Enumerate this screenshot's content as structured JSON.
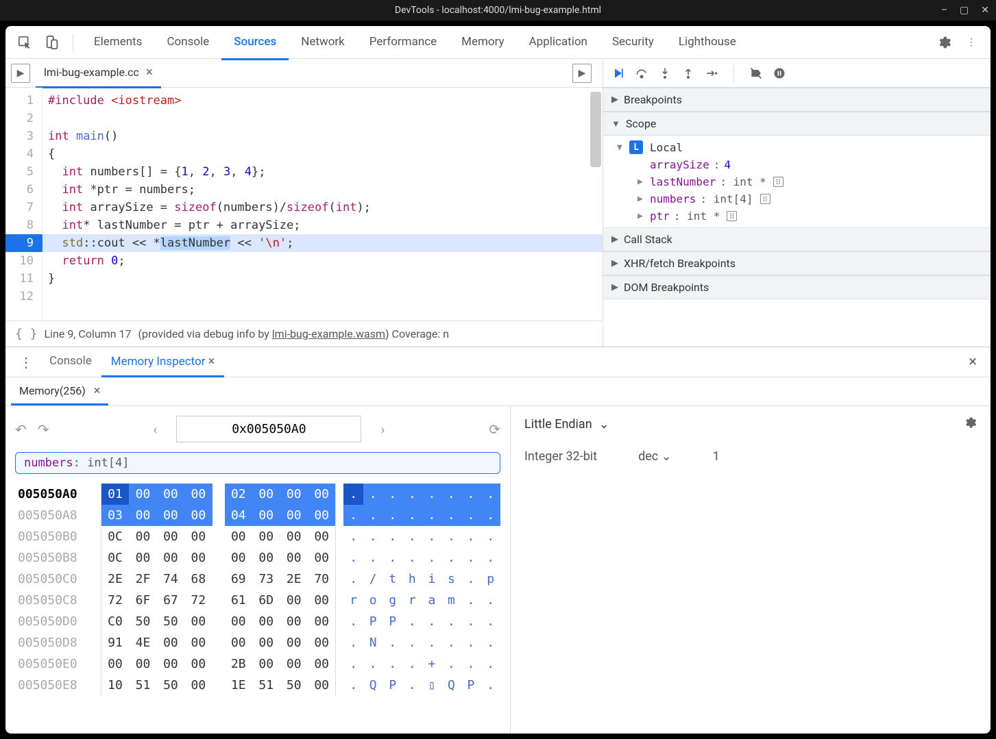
{
  "window": {
    "title": "DevTools - localhost:4000/lmi-bug-example.html"
  },
  "main_tabs": [
    "Elements",
    "Console",
    "Sources",
    "Network",
    "Performance",
    "Memory",
    "Application",
    "Security",
    "Lighthouse"
  ],
  "main_tabs_active": 2,
  "file_tab": "lmi-bug-example.cc",
  "code": {
    "lines": [
      {
        "n": 1,
        "html": "<span class='kw'>#include</span> <span class='str'>&lt;iostream&gt;</span>"
      },
      {
        "n": 2,
        "html": ""
      },
      {
        "n": 3,
        "html": "<span class='kw'>int</span> <span class='fn'>main</span>()"
      },
      {
        "n": 4,
        "html": "{"
      },
      {
        "n": 5,
        "html": "  <span class='kw'>int</span> numbers[] = {<span class='num'>1</span>, <span class='num'>2</span>, <span class='num'>3</span>, <span class='num'>4</span>};"
      },
      {
        "n": 6,
        "html": "  <span class='kw'>int</span> *ptr = numbers;"
      },
      {
        "n": 7,
        "html": "  <span class='kw'>int</span> arraySize = <span class='kw'>sizeof</span>(numbers)/<span class='kw'>sizeof</span>(<span class='kw'>int</span>);"
      },
      {
        "n": 8,
        "html": "  <span class='kw'>int</span>* lastNumber = ptr + arraySize;"
      },
      {
        "n": 9,
        "html": "  <span class='ns'>std</span>::cout &lt;&lt; *<span class='sel'>lastNumber</span> &lt;&lt; <span class='str'>'\\n'</span>;",
        "hl": true
      },
      {
        "n": 10,
        "html": "  <span class='kw'>return</span> <span class='num'>0</span>;"
      },
      {
        "n": 11,
        "html": "}"
      },
      {
        "n": 12,
        "html": ""
      }
    ]
  },
  "status": {
    "pos": "Line 9, Column 17",
    "provided": "(provided via debug info by ",
    "link": "lmi-bug-example.wasm",
    "after": ")  Coverage: n"
  },
  "panels": {
    "breakpoints": "Breakpoints",
    "scope": "Scope",
    "local": "Local",
    "callstack": "Call Stack",
    "xhr": "XHR/fetch Breakpoints",
    "dom": "DOM Breakpoints"
  },
  "scope": [
    {
      "name": "arraySize",
      "type": "",
      "val": "4",
      "num": true,
      "expand": false
    },
    {
      "name": "lastNumber",
      "type": ": int *",
      "val": "",
      "mem": true,
      "expand": true
    },
    {
      "name": "numbers",
      "type": ": int[4]",
      "val": "",
      "mem": true,
      "expand": true
    },
    {
      "name": "ptr",
      "type": ": int *",
      "val": "",
      "mem": true,
      "expand": true
    }
  ],
  "drawer_tabs": [
    "Console",
    "Memory Inspector"
  ],
  "drawer_active": 1,
  "mem_tab": "Memory(256)",
  "mem_addr": "0x005050A0",
  "mem_chip_name": "numbers",
  "mem_chip_type": ": int[4]",
  "endian": "Little Endian",
  "int_type": "Integer 32-bit",
  "int_fmt": "dec",
  "int_val": "1",
  "hex": {
    "rows": [
      {
        "addr": "005050A0",
        "cur": true,
        "b": [
          "01",
          "00",
          "00",
          "00",
          "02",
          "00",
          "00",
          "00"
        ],
        "a": [
          ".",
          ".",
          ".",
          ".",
          ".",
          ".",
          ".",
          "."
        ],
        "hi": [
          0,
          1,
          2,
          3,
          4,
          5,
          6,
          7
        ],
        "ahi": [
          0,
          1,
          2,
          3,
          4,
          5,
          6,
          7
        ],
        "dark": 0,
        "adark": 0
      },
      {
        "addr": "005050A8",
        "b": [
          "03",
          "00",
          "00",
          "00",
          "04",
          "00",
          "00",
          "00"
        ],
        "a": [
          ".",
          ".",
          ".",
          ".",
          ".",
          ".",
          ".",
          "."
        ],
        "hi": [
          0,
          1,
          2,
          3,
          4,
          5,
          6,
          7
        ],
        "ahi": [
          0,
          1,
          2,
          3,
          4,
          5,
          6,
          7
        ]
      },
      {
        "addr": "005050B0",
        "b": [
          "0C",
          "00",
          "00",
          "00",
          "00",
          "00",
          "00",
          "00"
        ],
        "a": [
          ".",
          ".",
          ".",
          ".",
          ".",
          ".",
          ".",
          "."
        ]
      },
      {
        "addr": "005050B8",
        "b": [
          "0C",
          "00",
          "00",
          "00",
          "00",
          "00",
          "00",
          "00"
        ],
        "a": [
          ".",
          ".",
          ".",
          ".",
          ".",
          ".",
          ".",
          "."
        ]
      },
      {
        "addr": "005050C0",
        "b": [
          "2E",
          "2F",
          "74",
          "68",
          "69",
          "73",
          "2E",
          "70"
        ],
        "a": [
          ".",
          "/",
          "t",
          "h",
          "i",
          "s",
          ".",
          "p"
        ]
      },
      {
        "addr": "005050C8",
        "b": [
          "72",
          "6F",
          "67",
          "72",
          "61",
          "6D",
          "00",
          "00"
        ],
        "a": [
          "r",
          "o",
          "g",
          "r",
          "a",
          "m",
          ".",
          "."
        ]
      },
      {
        "addr": "005050D0",
        "b": [
          "C0",
          "50",
          "50",
          "00",
          "00",
          "00",
          "00",
          "00"
        ],
        "a": [
          ".",
          "P",
          "P",
          ".",
          ".",
          ".",
          ".",
          "."
        ]
      },
      {
        "addr": "005050D8",
        "b": [
          "91",
          "4E",
          "00",
          "00",
          "00",
          "00",
          "00",
          "00"
        ],
        "a": [
          ".",
          "N",
          ".",
          ".",
          ".",
          ".",
          ".",
          "."
        ]
      },
      {
        "addr": "005050E0",
        "b": [
          "00",
          "00",
          "00",
          "00",
          "2B",
          "00",
          "00",
          "00"
        ],
        "a": [
          ".",
          ".",
          ".",
          ".",
          "+",
          ".",
          ".",
          "."
        ]
      },
      {
        "addr": "005050E8",
        "b": [
          "10",
          "51",
          "50",
          "00",
          "1E",
          "51",
          "50",
          "00"
        ],
        "a": [
          ".",
          "Q",
          "P",
          ".",
          "▯",
          "Q",
          "P",
          "."
        ]
      }
    ]
  }
}
